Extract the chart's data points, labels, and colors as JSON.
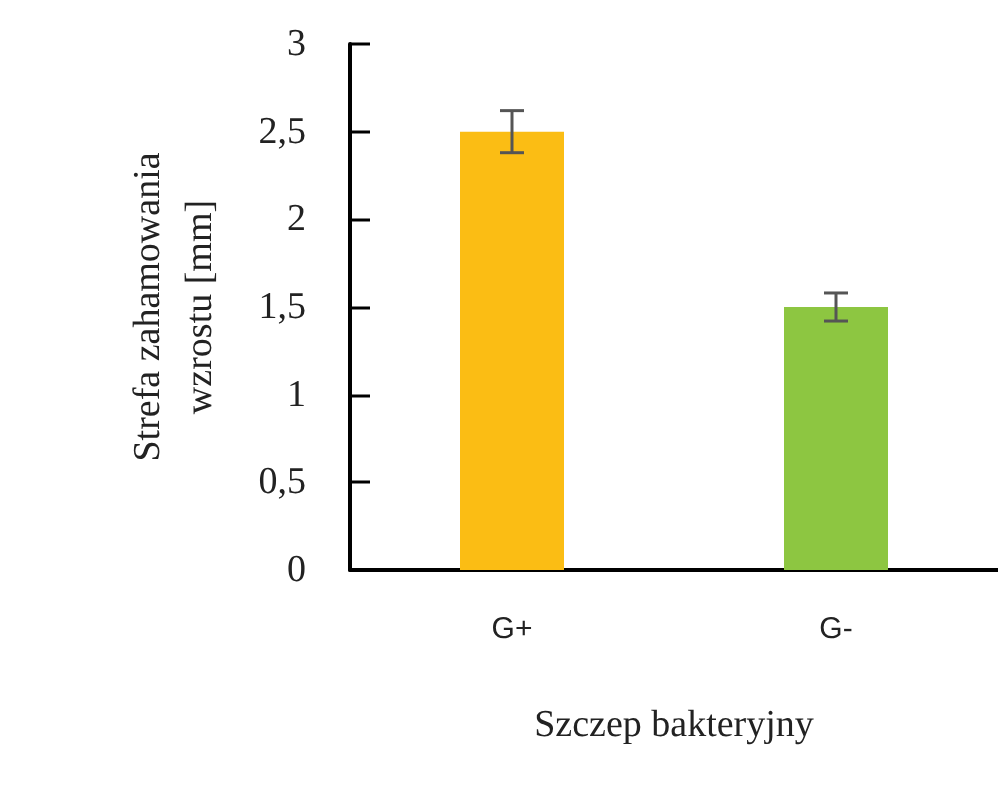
{
  "chart_data": {
    "type": "bar",
    "xlabel": "Szczep bakteryjny",
    "ylabel": "Strefa zahamowania wzrostu [mm]",
    "categories": [
      "G+",
      "G-"
    ],
    "values": [
      2.5,
      1.5
    ],
    "colors": [
      "#fbbd14",
      "#8dc641"
    ],
    "errors": [
      0.12,
      0.08
    ],
    "ylim": [
      0,
      3
    ],
    "yticks": [
      0,
      {
        "value": 0.5,
        "label": "0,5"
      },
      1,
      {
        "value": 1.5,
        "label": "1,5"
      },
      2,
      {
        "value": 2.5,
        "label": "2,5"
      },
      3
    ],
    "grid": false
  }
}
